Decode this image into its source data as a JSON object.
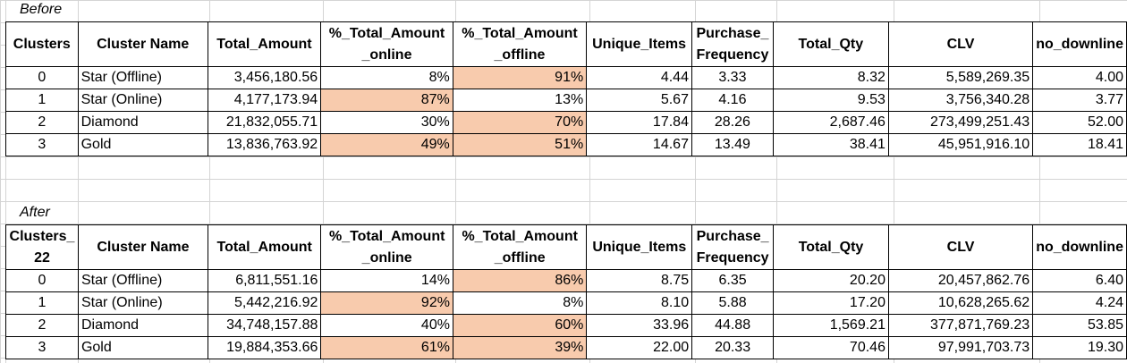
{
  "captions": {
    "before": "Before",
    "after": "After"
  },
  "colors": {
    "highlight": "#f8cbad",
    "gridline": "#d4d4d4"
  },
  "before": {
    "headers": [
      "Clusters",
      "Cluster Name",
      "Total_Amount",
      "%_Total_Amount\n_online",
      "%_Total_Amount\n_offline",
      "Unique_Items",
      "Purchase_\nFrequency",
      "Total_Qty",
      "CLV",
      "no_downline"
    ],
    "rows": [
      {
        "cluster": "0",
        "name": "Star (Offline)",
        "total_amount": "3,456,180.56",
        "pct_online": "8%",
        "pct_offline": "91%",
        "unique_items": "4.44",
        "purchase_frequency": "3.33",
        "total_qty": "8.32",
        "clv": "5,589,269.35",
        "no_downline": "4.00",
        "highlight": "offline"
      },
      {
        "cluster": "1",
        "name": "Star (Online)",
        "total_amount": "4,177,173.94",
        "pct_online": "87%",
        "pct_offline": "13%",
        "unique_items": "5.67",
        "purchase_frequency": "4.16",
        "total_qty": "9.53",
        "clv": "3,756,340.28",
        "no_downline": "3.77",
        "highlight": "online"
      },
      {
        "cluster": "2",
        "name": "Diamond",
        "total_amount": "21,832,055.71",
        "pct_online": "30%",
        "pct_offline": "70%",
        "unique_items": "17.84",
        "purchase_frequency": "28.26",
        "total_qty": "2,687.46",
        "clv": "273,499,251.43",
        "no_downline": "52.00",
        "highlight": "offline"
      },
      {
        "cluster": "3",
        "name": "Gold",
        "total_amount": "13,836,763.92",
        "pct_online": "49%",
        "pct_offline": "51%",
        "unique_items": "14.67",
        "purchase_frequency": "13.49",
        "total_qty": "38.41",
        "clv": "45,951,916.10",
        "no_downline": "18.41",
        "highlight": "both"
      }
    ]
  },
  "after": {
    "headers": [
      "Clusters_\n22",
      "Cluster Name",
      "Total_Amount",
      "%_Total_Amount\n_online",
      "%_Total_Amount\n_offline",
      "Unique_Items",
      "Purchase_\nFrequency",
      "Total_Qty",
      "CLV",
      "no_downline"
    ],
    "rows": [
      {
        "cluster": "0",
        "name": "Star (Offline)",
        "total_amount": "6,811,551.16",
        "pct_online": "14%",
        "pct_offline": "86%",
        "unique_items": "8.75",
        "purchase_frequency": "6.35",
        "total_qty": "20.20",
        "clv": "20,457,862.76",
        "no_downline": "6.40",
        "highlight": "offline"
      },
      {
        "cluster": "1",
        "name": "Star (Online)",
        "total_amount": "5,442,216.92",
        "pct_online": "92%",
        "pct_offline": "8%",
        "unique_items": "8.10",
        "purchase_frequency": "5.88",
        "total_qty": "17.20",
        "clv": "10,628,265.62",
        "no_downline": "4.24",
        "highlight": "online"
      },
      {
        "cluster": "2",
        "name": "Diamond",
        "total_amount": "34,748,157.88",
        "pct_online": "40%",
        "pct_offline": "60%",
        "unique_items": "33.96",
        "purchase_frequency": "44.88",
        "total_qty": "1,569.21",
        "clv": "377,871,769.23",
        "no_downline": "53.85",
        "highlight": "offline"
      },
      {
        "cluster": "3",
        "name": "Gold",
        "total_amount": "19,884,353.66",
        "pct_online": "61%",
        "pct_offline": "39%",
        "unique_items": "22.00",
        "purchase_frequency": "20.33",
        "total_qty": "70.46",
        "clv": "97,991,703.73",
        "no_downline": "19.30",
        "highlight": "both"
      }
    ]
  }
}
